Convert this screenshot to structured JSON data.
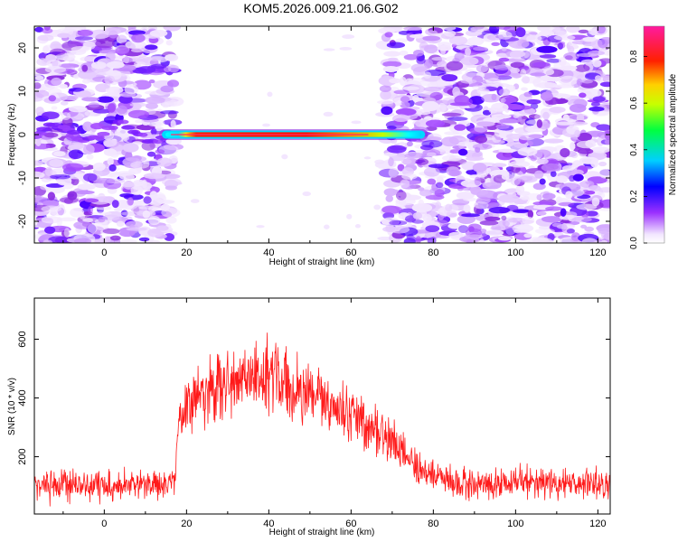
{
  "figure": {
    "title": "KOM5.2026.009.21.06.G02"
  },
  "chart_data": [
    {
      "type": "heatmap",
      "xlabel": "Height of straight line (km)",
      "ylabel": "Frequency (Hz)",
      "xlim": [
        -17,
        123
      ],
      "ylim": [
        -25,
        25
      ],
      "x_ticks": [
        0,
        20,
        40,
        60,
        80,
        100,
        120
      ],
      "y_ticks": [
        -20,
        -10,
        0,
        10,
        20
      ],
      "grid": false,
      "colormap": "rainbow (white -> violet -> blue -> cyan -> green -> yellow -> red -> magenta)",
      "colorbar": {
        "label": "Normalized spectral amplitude",
        "range": [
          0,
          0.93
        ],
        "ticks": [
          0.0,
          0.2,
          0.4,
          0.6,
          0.8
        ]
      },
      "features": [
        {
          "description": "strong line at 0 Hz",
          "x_range_km": [
            14,
            78
          ],
          "frequency_hz": 0,
          "peak_amplitude": 0.9
        },
        {
          "description": "background noise region",
          "x_range_km": [
            -17,
            17
          ],
          "amplitude_range": [
            0.05,
            0.35
          ]
        },
        {
          "description": "background noise region",
          "x_range_km": [
            68,
            123
          ],
          "amplitude_range": [
            0.05,
            0.35
          ]
        }
      ]
    },
    {
      "type": "line",
      "xlabel": "Height of straight line (km)",
      "ylabel": "SNR (10 * v/v)",
      "xlim": [
        -17,
        123
      ],
      "ylim": [
        5,
        740
      ],
      "x_ticks": [
        0,
        20,
        40,
        60,
        80,
        100,
        120
      ],
      "y_ticks": [
        200,
        400,
        600
      ],
      "grid": false,
      "series": [
        {
          "color": "#ff0000",
          "envelope_points_x": [
            -17,
            0,
            17,
            18,
            20,
            25,
            30,
            35,
            40,
            45,
            50,
            55,
            60,
            65,
            70,
            75,
            80,
            85,
            100,
            123
          ],
          "envelope_mean_y": [
            105,
            105,
            110,
            300,
            360,
            430,
            450,
            480,
            480,
            460,
            420,
            380,
            340,
            300,
            250,
            190,
            130,
            110,
            110,
            110
          ],
          "noise_amplitude_y": [
            60,
            60,
            60,
            90,
            110,
            130,
            140,
            150,
            150,
            140,
            120,
            110,
            100,
            90,
            80,
            70,
            60,
            60,
            60,
            60
          ]
        }
      ]
    }
  ],
  "colors": {
    "line": "#ff1a1a",
    "axes": "#000000",
    "background": "#ffffff"
  }
}
